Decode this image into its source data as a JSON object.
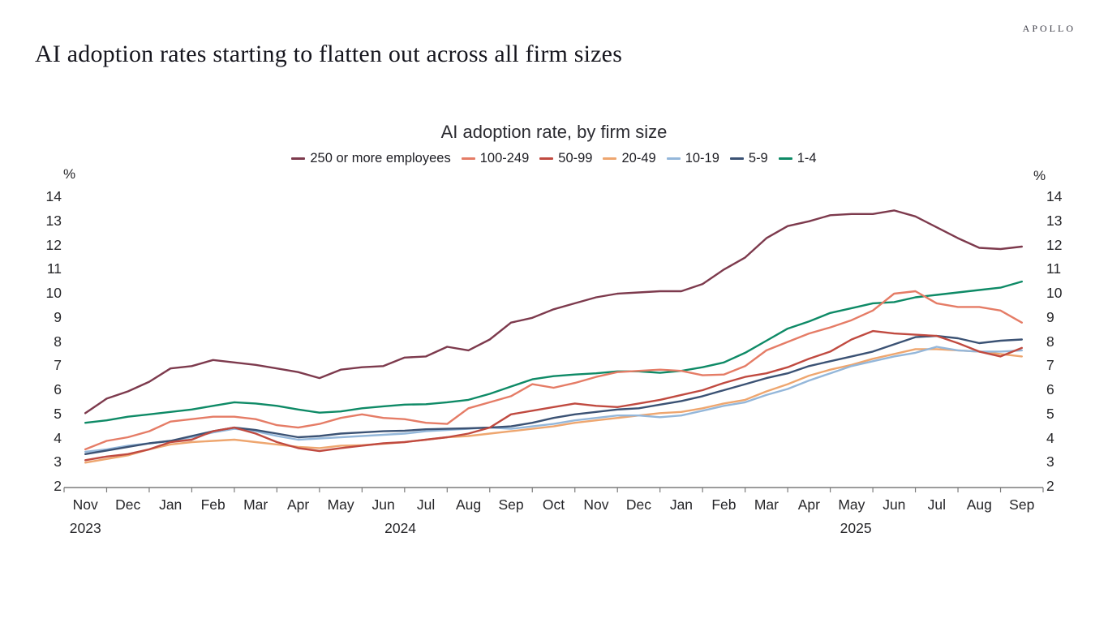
{
  "branding": {
    "logo": "APOLLO"
  },
  "title": "AI adoption rates starting to flatten out across all firm sizes",
  "chart_data": {
    "type": "line",
    "title": "AI adoption rate, by firm size",
    "unit_label": "%",
    "ylim": [
      2,
      14
    ],
    "yticks": [
      14,
      13,
      12,
      11,
      10,
      9,
      8,
      7,
      6,
      5,
      4,
      3,
      2
    ],
    "grid": false,
    "legend_position": "top",
    "points_per_month": 2,
    "x_months": [
      "Nov",
      "Dec",
      "Jan",
      "Feb",
      "Mar",
      "Apr",
      "May",
      "Jun",
      "Jul",
      "Aug",
      "Sep",
      "Oct",
      "Nov",
      "Dec",
      "Jan",
      "Feb",
      "Mar",
      "Apr",
      "May",
      "Jun",
      "Jul",
      "Aug",
      "Sep"
    ],
    "x_years": [
      {
        "label": "2023",
        "at_month": 0
      },
      {
        "label": "2024",
        "at_month": 7.4
      },
      {
        "label": "2025",
        "at_month": 18.1
      }
    ],
    "series": [
      {
        "name": "250 or more employees",
        "color": "#7d3a4d",
        "values": [
          5.05,
          5.65,
          5.95,
          6.35,
          6.9,
          7.0,
          7.25,
          7.15,
          7.05,
          6.9,
          6.75,
          6.5,
          6.85,
          6.95,
          7.0,
          7.35,
          7.4,
          7.8,
          7.65,
          8.1,
          8.8,
          9.0,
          9.35,
          9.6,
          9.85,
          10.0,
          10.05,
          10.1,
          10.1,
          10.4,
          11.0,
          11.5,
          12.3,
          12.8,
          13.0,
          13.25,
          13.3,
          13.3,
          13.45,
          13.2,
          12.75,
          12.3,
          11.9,
          11.85,
          11.95
        ]
      },
      {
        "name": "100-249",
        "color": "#e57c66",
        "values": [
          3.55,
          3.9,
          4.05,
          4.3,
          4.7,
          4.8,
          4.9,
          4.9,
          4.8,
          4.55,
          4.45,
          4.6,
          4.85,
          5.0,
          4.85,
          4.8,
          4.65,
          4.6,
          5.25,
          5.5,
          5.75,
          6.25,
          6.1,
          6.3,
          6.55,
          6.75,
          6.8,
          6.85,
          6.8,
          6.62,
          6.65,
          7.0,
          7.65,
          8.0,
          8.35,
          8.6,
          8.9,
          9.3,
          10.0,
          10.1,
          9.6,
          9.45,
          9.45,
          9.3,
          8.8
        ]
      },
      {
        "name": "50-99",
        "color": "#c04a40",
        "values": [
          3.1,
          3.25,
          3.35,
          3.55,
          3.85,
          3.95,
          4.3,
          4.45,
          4.2,
          3.85,
          3.6,
          3.48,
          3.6,
          3.7,
          3.8,
          3.85,
          3.95,
          4.05,
          4.2,
          4.45,
          5.0,
          5.15,
          5.3,
          5.45,
          5.35,
          5.3,
          5.45,
          5.6,
          5.8,
          6.0,
          6.3,
          6.55,
          6.7,
          6.95,
          7.3,
          7.6,
          8.1,
          8.45,
          8.35,
          8.3,
          8.25,
          7.95,
          7.6,
          7.4,
          7.75
        ]
      },
      {
        "name": "20-49",
        "color": "#eea66f",
        "values": [
          3.0,
          3.15,
          3.3,
          3.55,
          3.75,
          3.85,
          3.9,
          3.95,
          3.85,
          3.75,
          3.65,
          3.6,
          3.7,
          3.72,
          3.78,
          3.85,
          3.95,
          4.05,
          4.1,
          4.2,
          4.3,
          4.4,
          4.5,
          4.65,
          4.75,
          4.85,
          4.95,
          5.05,
          5.1,
          5.25,
          5.45,
          5.6,
          5.95,
          6.25,
          6.6,
          6.85,
          7.05,
          7.3,
          7.5,
          7.7,
          7.7,
          7.65,
          7.6,
          7.5,
          7.4
        ]
      },
      {
        "name": "10-19",
        "color": "#94b7da",
        "values": [
          3.45,
          3.55,
          3.7,
          3.8,
          3.9,
          4.05,
          4.25,
          4.4,
          4.3,
          4.1,
          3.95,
          4.0,
          4.05,
          4.1,
          4.15,
          4.2,
          4.3,
          4.35,
          4.4,
          4.45,
          4.4,
          4.5,
          4.6,
          4.75,
          4.85,
          4.95,
          4.95,
          4.88,
          4.95,
          5.15,
          5.35,
          5.5,
          5.8,
          6.05,
          6.4,
          6.7,
          7.0,
          7.2,
          7.4,
          7.55,
          7.8,
          7.65,
          7.6,
          7.6,
          7.65
        ]
      },
      {
        "name": "5-9",
        "color": "#3b5274",
        "values": [
          3.35,
          3.5,
          3.65,
          3.8,
          3.9,
          4.1,
          4.3,
          4.45,
          4.35,
          4.2,
          4.05,
          4.1,
          4.2,
          4.25,
          4.3,
          4.32,
          4.38,
          4.4,
          4.42,
          4.45,
          4.5,
          4.65,
          4.85,
          5.0,
          5.1,
          5.2,
          5.25,
          5.4,
          5.55,
          5.75,
          6.0,
          6.25,
          6.5,
          6.7,
          7.0,
          7.2,
          7.4,
          7.6,
          7.9,
          8.2,
          8.25,
          8.15,
          7.95,
          8.05,
          8.1
        ]
      },
      {
        "name": "1-4",
        "color": "#0e8a66",
        "values": [
          4.65,
          4.75,
          4.9,
          5.0,
          5.1,
          5.2,
          5.35,
          5.5,
          5.45,
          5.35,
          5.2,
          5.07,
          5.12,
          5.25,
          5.33,
          5.4,
          5.42,
          5.5,
          5.6,
          5.85,
          6.15,
          6.45,
          6.58,
          6.65,
          6.7,
          6.78,
          6.78,
          6.72,
          6.8,
          6.95,
          7.15,
          7.55,
          8.05,
          8.55,
          8.85,
          9.2,
          9.4,
          9.6,
          9.65,
          9.85,
          9.95,
          10.05,
          10.15,
          10.25,
          10.5
        ]
      }
    ]
  }
}
